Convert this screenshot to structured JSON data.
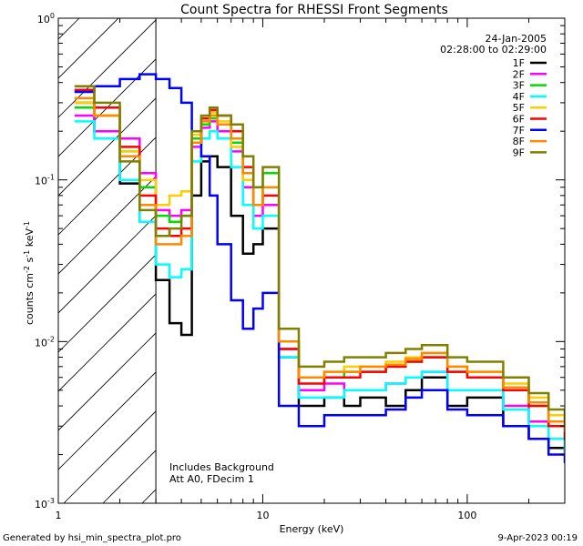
{
  "chart_data": {
    "type": "line",
    "title": "Count Spectra for RHESSI Front Segments",
    "xlabel": "Energy (keV)",
    "ylabel_parts": [
      "counts cm",
      "-2",
      " s",
      "-1",
      " keV",
      "-1"
    ],
    "xscale": "log",
    "yscale": "log",
    "xlim": [
      1,
      300
    ],
    "ylim": [
      0.001,
      1
    ],
    "x_tick_labels": [
      "1",
      "10",
      "100"
    ],
    "y_tick_labels": [
      {
        "base": "10",
        "exp": "0"
      },
      {
        "base": "10",
        "exp": "-1"
      },
      {
        "base": "10",
        "exp": "-2"
      },
      {
        "base": "10",
        "exp": "-3"
      }
    ],
    "date": "24-Jan-2005",
    "time_range": "02:28:00 to 02:29:00",
    "attenuator_cutoff_keV": 3,
    "annotations": [
      "Includes Background",
      "Att A0, FDecim 1"
    ],
    "footer_left": "Generated by hsi_min_spectra_plot.pro",
    "footer_right": "9-Apr-2023 00:19",
    "energy_bins": [
      1.2,
      1.5,
      2.0,
      2.5,
      3.0,
      3.5,
      4.0,
      4.5,
      5.0,
      5.5,
      6.0,
      7.0,
      8.0,
      9.0,
      10.0,
      12.0,
      15.0,
      20.0,
      25.0,
      30.0,
      40.0,
      50.0,
      60.0,
      80.0,
      100.0,
      150.0,
      200.0,
      250.0,
      300.0
    ],
    "series": [
      {
        "name": "1F",
        "color": "#000000",
        "values": [
          0.3,
          0.2,
          0.095,
          0.055,
          0.024,
          0.013,
          0.011,
          0.08,
          0.13,
          0.14,
          0.12,
          0.06,
          0.035,
          0.04,
          0.05,
          0.008,
          0.004,
          0.0045,
          0.004,
          0.0045,
          0.004,
          0.005,
          0.006,
          0.004,
          0.0045,
          0.003,
          0.0025,
          0.0022,
          0.002
        ]
      },
      {
        "name": "2F",
        "color": "#ff00ff",
        "values": [
          0.25,
          0.2,
          0.18,
          0.11,
          0.065,
          0.06,
          0.065,
          0.16,
          0.21,
          0.23,
          0.2,
          0.15,
          0.09,
          0.06,
          0.07,
          0.009,
          0.005,
          0.0055,
          0.005,
          0.005,
          0.0055,
          0.006,
          0.0065,
          0.005,
          0.005,
          0.004,
          0.0032,
          0.0025,
          0.002
        ]
      },
      {
        "name": "3F",
        "color": "#00dd00",
        "values": [
          0.28,
          0.25,
          0.15,
          0.09,
          0.06,
          0.055,
          0.06,
          0.18,
          0.22,
          0.24,
          0.22,
          0.17,
          0.1,
          0.07,
          0.11,
          0.01,
          0.006,
          0.006,
          0.0065,
          0.0065,
          0.007,
          0.0075,
          0.008,
          0.0065,
          0.006,
          0.005,
          0.004,
          0.003,
          0.0025
        ]
      },
      {
        "name": "4F",
        "color": "#00ffff",
        "values": [
          0.23,
          0.18,
          0.1,
          0.055,
          0.03,
          0.025,
          0.028,
          0.13,
          0.18,
          0.2,
          0.18,
          0.12,
          0.07,
          0.05,
          0.06,
          0.008,
          0.0045,
          0.0045,
          0.005,
          0.005,
          0.0055,
          0.006,
          0.0065,
          0.005,
          0.005,
          0.0038,
          0.003,
          0.0025,
          0.002
        ]
      },
      {
        "name": "5F",
        "color": "#ffcc00",
        "values": [
          0.3,
          0.25,
          0.15,
          0.1,
          0.07,
          0.08,
          0.085,
          0.19,
          0.24,
          0.26,
          0.23,
          0.16,
          0.1,
          0.07,
          0.09,
          0.01,
          0.006,
          0.0065,
          0.007,
          0.007,
          0.0075,
          0.008,
          0.0085,
          0.007,
          0.0065,
          0.0055,
          0.0045,
          0.0035,
          0.003
        ]
      },
      {
        "name": "6F",
        "color": "#ff0000",
        "values": [
          0.36,
          0.28,
          0.16,
          0.08,
          0.05,
          0.045,
          0.05,
          0.17,
          0.24,
          0.27,
          0.25,
          0.2,
          0.12,
          0.07,
          0.08,
          0.009,
          0.0055,
          0.006,
          0.006,
          0.0065,
          0.007,
          0.0075,
          0.008,
          0.0065,
          0.006,
          0.005,
          0.004,
          0.003,
          0.0025
        ]
      },
      {
        "name": "7F",
        "color": "#0000ff",
        "values": [
          0.35,
          0.38,
          0.42,
          0.45,
          0.42,
          0.37,
          0.3,
          0.2,
          0.14,
          0.08,
          0.04,
          0.018,
          0.012,
          0.016,
          0.02,
          0.004,
          0.003,
          0.0035,
          0.0035,
          0.0035,
          0.0038,
          0.0045,
          0.005,
          0.0038,
          0.0035,
          0.003,
          0.0025,
          0.002,
          0.0018
        ]
      },
      {
        "name": "8F",
        "color": "#ff8800",
        "values": [
          0.32,
          0.25,
          0.14,
          0.07,
          0.04,
          0.04,
          0.045,
          0.17,
          0.23,
          0.25,
          0.22,
          0.18,
          0.11,
          0.07,
          0.09,
          0.01,
          0.006,
          0.0065,
          0.0065,
          0.007,
          0.0072,
          0.0078,
          0.0085,
          0.007,
          0.0065,
          0.0052,
          0.0042,
          0.0032,
          0.0028
        ]
      },
      {
        "name": "9F",
        "color": "#808000",
        "values": [
          0.38,
          0.3,
          0.13,
          0.065,
          0.045,
          0.05,
          0.06,
          0.2,
          0.25,
          0.28,
          0.25,
          0.22,
          0.14,
          0.09,
          0.12,
          0.012,
          0.007,
          0.0075,
          0.008,
          0.008,
          0.0085,
          0.009,
          0.0095,
          0.008,
          0.0075,
          0.006,
          0.0048,
          0.0038,
          0.003
        ]
      }
    ]
  }
}
